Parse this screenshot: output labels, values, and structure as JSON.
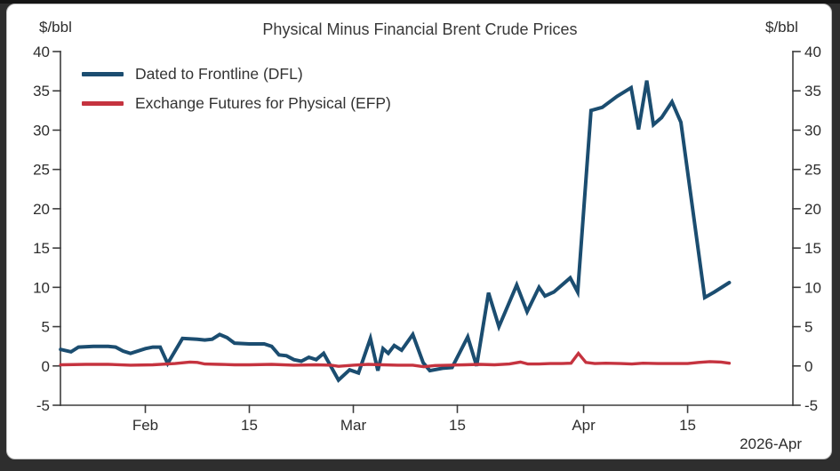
{
  "frame": {
    "background": "#2e2e2e",
    "card_background": "#ffffff"
  },
  "chart_data": {
    "type": "line",
    "title": "Physical Minus Financial Brent Crude Prices",
    "grid": false,
    "legend_position": "top-left",
    "y_axis": {
      "unit_left": "$/bbl",
      "unit_right": "$/bbl",
      "min": -5,
      "max": 40,
      "ticks": [
        40,
        35,
        30,
        25,
        20,
        15,
        10,
        5,
        0,
        -5
      ]
    },
    "x_axis": {
      "footer_label": "2026-Apr",
      "ticks": [
        {
          "label": "Feb",
          "day": 11
        },
        {
          "label": "15",
          "day": 25
        },
        {
          "label": "Mar",
          "day": 39
        },
        {
          "label": "15",
          "day": 53
        },
        {
          "label": "Apr",
          "day": 70
        },
        {
          "label": "15",
          "day": 84
        }
      ]
    },
    "series": [
      {
        "name": "Dated to Frontline (DFL)",
        "color": "#1b4d70",
        "points": [
          [
            -0.4,
            2.1
          ],
          [
            1,
            1.8
          ],
          [
            2,
            2.4
          ],
          [
            4,
            2.5
          ],
          [
            6,
            2.5
          ],
          [
            7,
            2.4
          ],
          [
            8,
            1.9
          ],
          [
            9,
            1.6
          ],
          [
            11,
            2.2
          ],
          [
            12,
            2.4
          ],
          [
            13,
            2.4
          ],
          [
            14,
            0.3
          ],
          [
            16,
            3.5
          ],
          [
            18,
            3.4
          ],
          [
            19,
            3.3
          ],
          [
            20,
            3.4
          ],
          [
            21,
            4.0
          ],
          [
            22,
            3.6
          ],
          [
            23,
            2.9
          ],
          [
            25,
            2.8
          ],
          [
            27,
            2.8
          ],
          [
            28,
            2.5
          ],
          [
            29,
            1.4
          ],
          [
            30,
            1.3
          ],
          [
            31,
            0.8
          ],
          [
            32,
            0.6
          ],
          [
            33,
            1.1
          ],
          [
            34,
            0.8
          ],
          [
            35,
            1.6
          ],
          [
            37,
            -1.8
          ],
          [
            38.5,
            -0.5
          ],
          [
            39.7,
            -0.9
          ],
          [
            41.3,
            3.5
          ],
          [
            42.3,
            -0.6
          ],
          [
            43,
            2.2
          ],
          [
            43.7,
            1.6
          ],
          [
            44.5,
            2.6
          ],
          [
            45.5,
            2.0
          ],
          [
            47,
            4.0
          ],
          [
            48.4,
            0.4
          ],
          [
            49.3,
            -0.6
          ],
          [
            51,
            -0.3
          ],
          [
            52.3,
            -0.2
          ],
          [
            54.4,
            3.7
          ],
          [
            55.6,
            0.0
          ],
          [
            57.2,
            9.3
          ],
          [
            58.6,
            5.0
          ],
          [
            61,
            10.3
          ],
          [
            62.4,
            6.9
          ],
          [
            64,
            10.0
          ],
          [
            64.8,
            8.9
          ],
          [
            66,
            9.4
          ],
          [
            68.2,
            11.2
          ],
          [
            69.2,
            9.4
          ],
          [
            71,
            32.5
          ],
          [
            72.5,
            32.9
          ],
          [
            74.5,
            34.3
          ],
          [
            76.4,
            35.4
          ],
          [
            77.4,
            30.1
          ],
          [
            78.5,
            36.3
          ],
          [
            79.4,
            30.7
          ],
          [
            80.5,
            31.6
          ],
          [
            81.9,
            33.6
          ],
          [
            83.1,
            31.0
          ],
          [
            86.3,
            8.7
          ],
          [
            87.6,
            9.4
          ],
          [
            89.6,
            10.6
          ]
        ]
      },
      {
        "name": "Exchange Futures for Physical (EFP)",
        "color": "#c5333f",
        "points": [
          [
            -0.4,
            0.15
          ],
          [
            3,
            0.2
          ],
          [
            6,
            0.2
          ],
          [
            9,
            0.1
          ],
          [
            12,
            0.15
          ],
          [
            15,
            0.3
          ],
          [
            17,
            0.5
          ],
          [
            18,
            0.45
          ],
          [
            19,
            0.25
          ],
          [
            21,
            0.2
          ],
          [
            23,
            0.15
          ],
          [
            25,
            0.15
          ],
          [
            28,
            0.2
          ],
          [
            31,
            0.1
          ],
          [
            34,
            0.15
          ],
          [
            36,
            0.1
          ],
          [
            37,
            -0.05
          ],
          [
            39,
            0.1
          ],
          [
            41,
            0.2
          ],
          [
            43,
            0.15
          ],
          [
            45,
            0.1
          ],
          [
            47,
            0.1
          ],
          [
            48.5,
            -0.1
          ],
          [
            50,
            0.05
          ],
          [
            52,
            0.1
          ],
          [
            54,
            0.15
          ],
          [
            56,
            0.2
          ],
          [
            58,
            0.15
          ],
          [
            60,
            0.25
          ],
          [
            61.5,
            0.5
          ],
          [
            62.5,
            0.25
          ],
          [
            64,
            0.25
          ],
          [
            65.5,
            0.3
          ],
          [
            67,
            0.3
          ],
          [
            68.3,
            0.35
          ],
          [
            69.3,
            1.6
          ],
          [
            70.3,
            0.45
          ],
          [
            71.5,
            0.3
          ],
          [
            73,
            0.35
          ],
          [
            75,
            0.3
          ],
          [
            76.5,
            0.25
          ],
          [
            78,
            0.35
          ],
          [
            80,
            0.3
          ],
          [
            82,
            0.3
          ],
          [
            84,
            0.3
          ],
          [
            85.5,
            0.45
          ],
          [
            87,
            0.55
          ],
          [
            88.5,
            0.5
          ],
          [
            89.6,
            0.35
          ]
        ]
      }
    ]
  }
}
